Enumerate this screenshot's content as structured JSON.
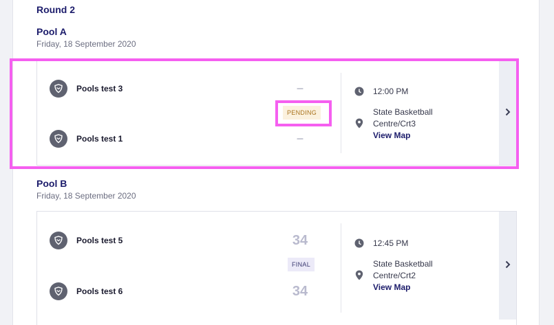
{
  "round": {
    "title": "Round 2"
  },
  "pools": [
    {
      "title": "Pool A",
      "date": "Friday, 18 September 2020",
      "match": {
        "home": {
          "name": "Pools test 3",
          "score": "–"
        },
        "away": {
          "name": "Pools test 1",
          "score": "–"
        },
        "status": "PENDING",
        "time": "12:00 PM",
        "venue_line1": "State Basketball",
        "venue_line2": "Centre/Crt3",
        "map_link": "View Map"
      }
    },
    {
      "title": "Pool B",
      "date": "Friday, 18 September 2020",
      "match": {
        "home": {
          "name": "Pools test 5",
          "score": "34"
        },
        "away": {
          "name": "Pools test 6",
          "score": "34"
        },
        "status": "FINAL",
        "time": "12:45 PM",
        "venue_line1": "State Basketball",
        "venue_line2": "Centre/Crt2",
        "map_link": "View Map"
      }
    }
  ],
  "icons": {
    "team": "shield-icon",
    "time": "clock-icon",
    "venue": "location-pin-icon",
    "arrow": "chevron-right-icon"
  },
  "colors": {
    "highlight": "#f55ff0",
    "pending_bg": "#fbf1de",
    "pending_text": "#a9721c",
    "final_bg": "#eceaf8",
    "heading": "#1c1c6b"
  }
}
